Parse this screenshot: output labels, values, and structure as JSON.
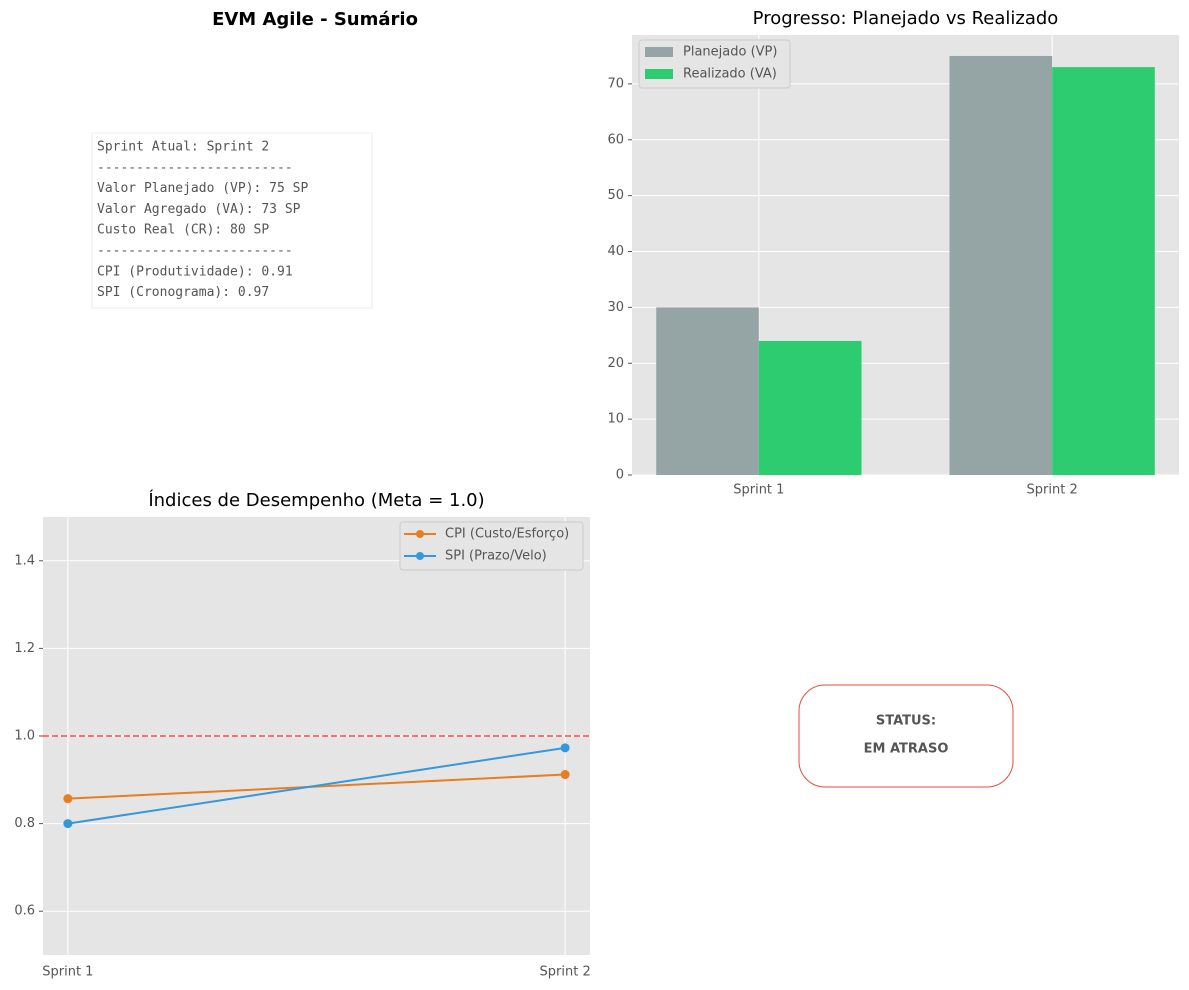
{
  "chart_data": [
    {
      "type": "text",
      "title": "EVM Agile - Sumário",
      "lines": [
        "Sprint Atual: Sprint 2",
        "-------------------------",
        "Valor Planejado (VP): 75 SP",
        "Valor Agregado (VA): 73 SP",
        "Custo Real (CR): 80 SP",
        "-------------------------",
        "CPI (Produtividade): 0.91",
        "SPI (Cronograma): 0.97"
      ]
    },
    {
      "type": "bar",
      "title": "Progresso: Planejado vs Realizado",
      "categories": [
        "Sprint 1",
        "Sprint 2"
      ],
      "series": [
        {
          "name": "Planejado (VP)",
          "color": "#95a5a6",
          "values": [
            30,
            75
          ]
        },
        {
          "name": "Realizado (VA)",
          "color": "#2ecc71",
          "values": [
            24,
            73
          ]
        }
      ],
      "ylim": [
        0,
        78.75
      ],
      "yticks": [
        0,
        10,
        20,
        30,
        40,
        50,
        60,
        70
      ],
      "grid": true,
      "legend": "upper left"
    },
    {
      "type": "line",
      "title": "Índices de Desempenho (Meta = 1.0)",
      "categories": [
        "Sprint 1",
        "Sprint 2"
      ],
      "series": [
        {
          "name": "CPI (Custo/Esforço)",
          "color": "#e67e22",
          "values": [
            0.857,
            0.912
          ]
        },
        {
          "name": "SPI (Prazo/Velo)",
          "color": "#3498db",
          "values": [
            0.8,
            0.973
          ]
        }
      ],
      "ylim": [
        0.5,
        1.5
      ],
      "yticks": [
        0.6,
        0.8,
        {
          "value": 1,
          "label": "1.0"
        },
        1.2,
        1.4
      ],
      "reference_line": 1,
      "reference_color": "#ff4d4d",
      "grid": true,
      "legend": "upper right"
    },
    {
      "type": "status",
      "lines": [
        "STATUS:",
        "EM ATRASO"
      ],
      "color": "#e74c3c"
    }
  ]
}
